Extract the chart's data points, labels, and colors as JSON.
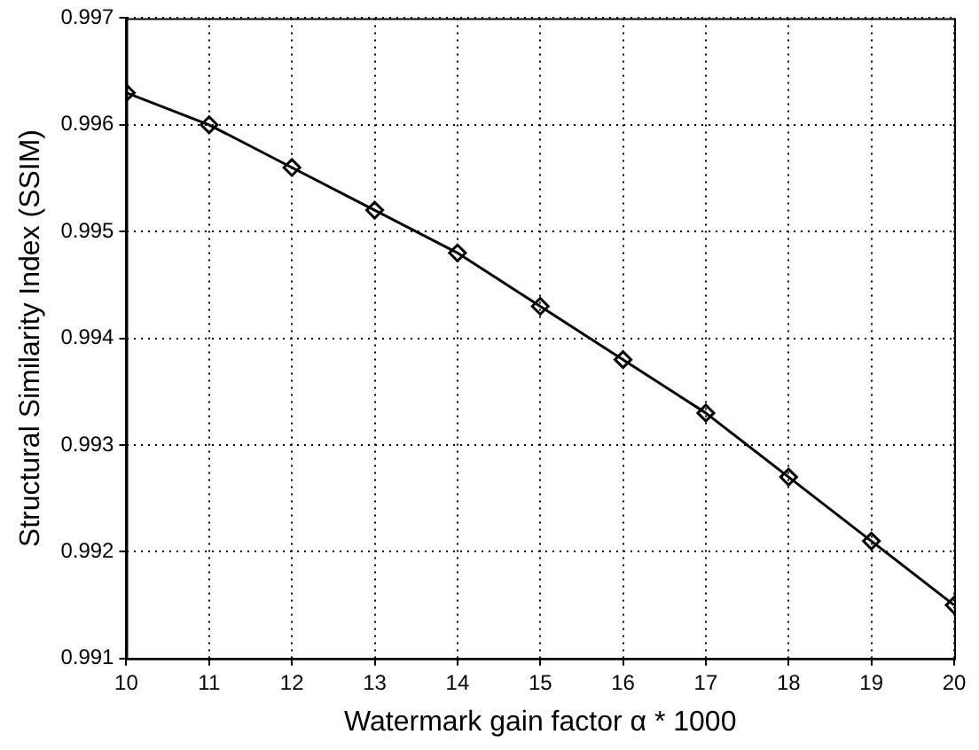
{
  "chart_data": {
    "type": "line",
    "xlabel": "Watermark gain factor α * 1000",
    "ylabel": "Structural Similarity Index (SSIM)",
    "x": [
      10,
      11,
      12,
      13,
      14,
      15,
      16,
      17,
      18,
      19,
      20
    ],
    "series": [
      {
        "color": "#000000",
        "values": [
          0.9963,
          0.996,
          0.9956,
          0.9952,
          0.9948,
          0.9943,
          0.9938,
          0.9933,
          0.9927,
          0.9921,
          0.9915
        ]
      }
    ],
    "xlim": [
      10,
      20
    ],
    "xticks": [
      10,
      11,
      12,
      13,
      14,
      15,
      16,
      17,
      18,
      19,
      20
    ],
    "ylim": [
      0.991,
      0.997
    ],
    "yticks": [
      0.991,
      0.992,
      0.993,
      0.994,
      0.995,
      0.996,
      0.997
    ],
    "grid": true,
    "marker": "diamond",
    "line_style": "solid",
    "legend": false
  }
}
